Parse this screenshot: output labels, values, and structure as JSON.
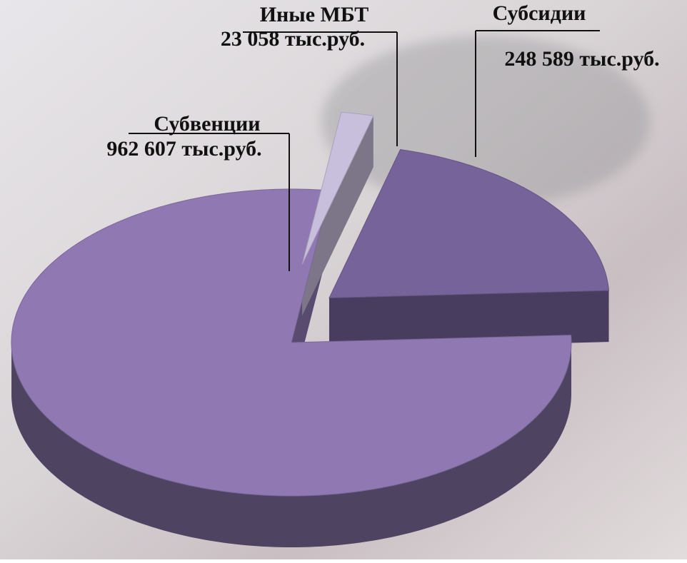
{
  "chart_data": {
    "type": "pie3d",
    "categories": [
      "Субвенции",
      "Иные МБТ",
      "Субсидии"
    ],
    "values": [
      962607,
      23058,
      248589
    ],
    "value_labels": [
      "962 607 тыс.руб.",
      "23 058 тыс.руб.",
      "248 589 тыс.руб."
    ],
    "colors": [
      "#9079b3",
      "#c8bfdc",
      "#76639a"
    ]
  }
}
